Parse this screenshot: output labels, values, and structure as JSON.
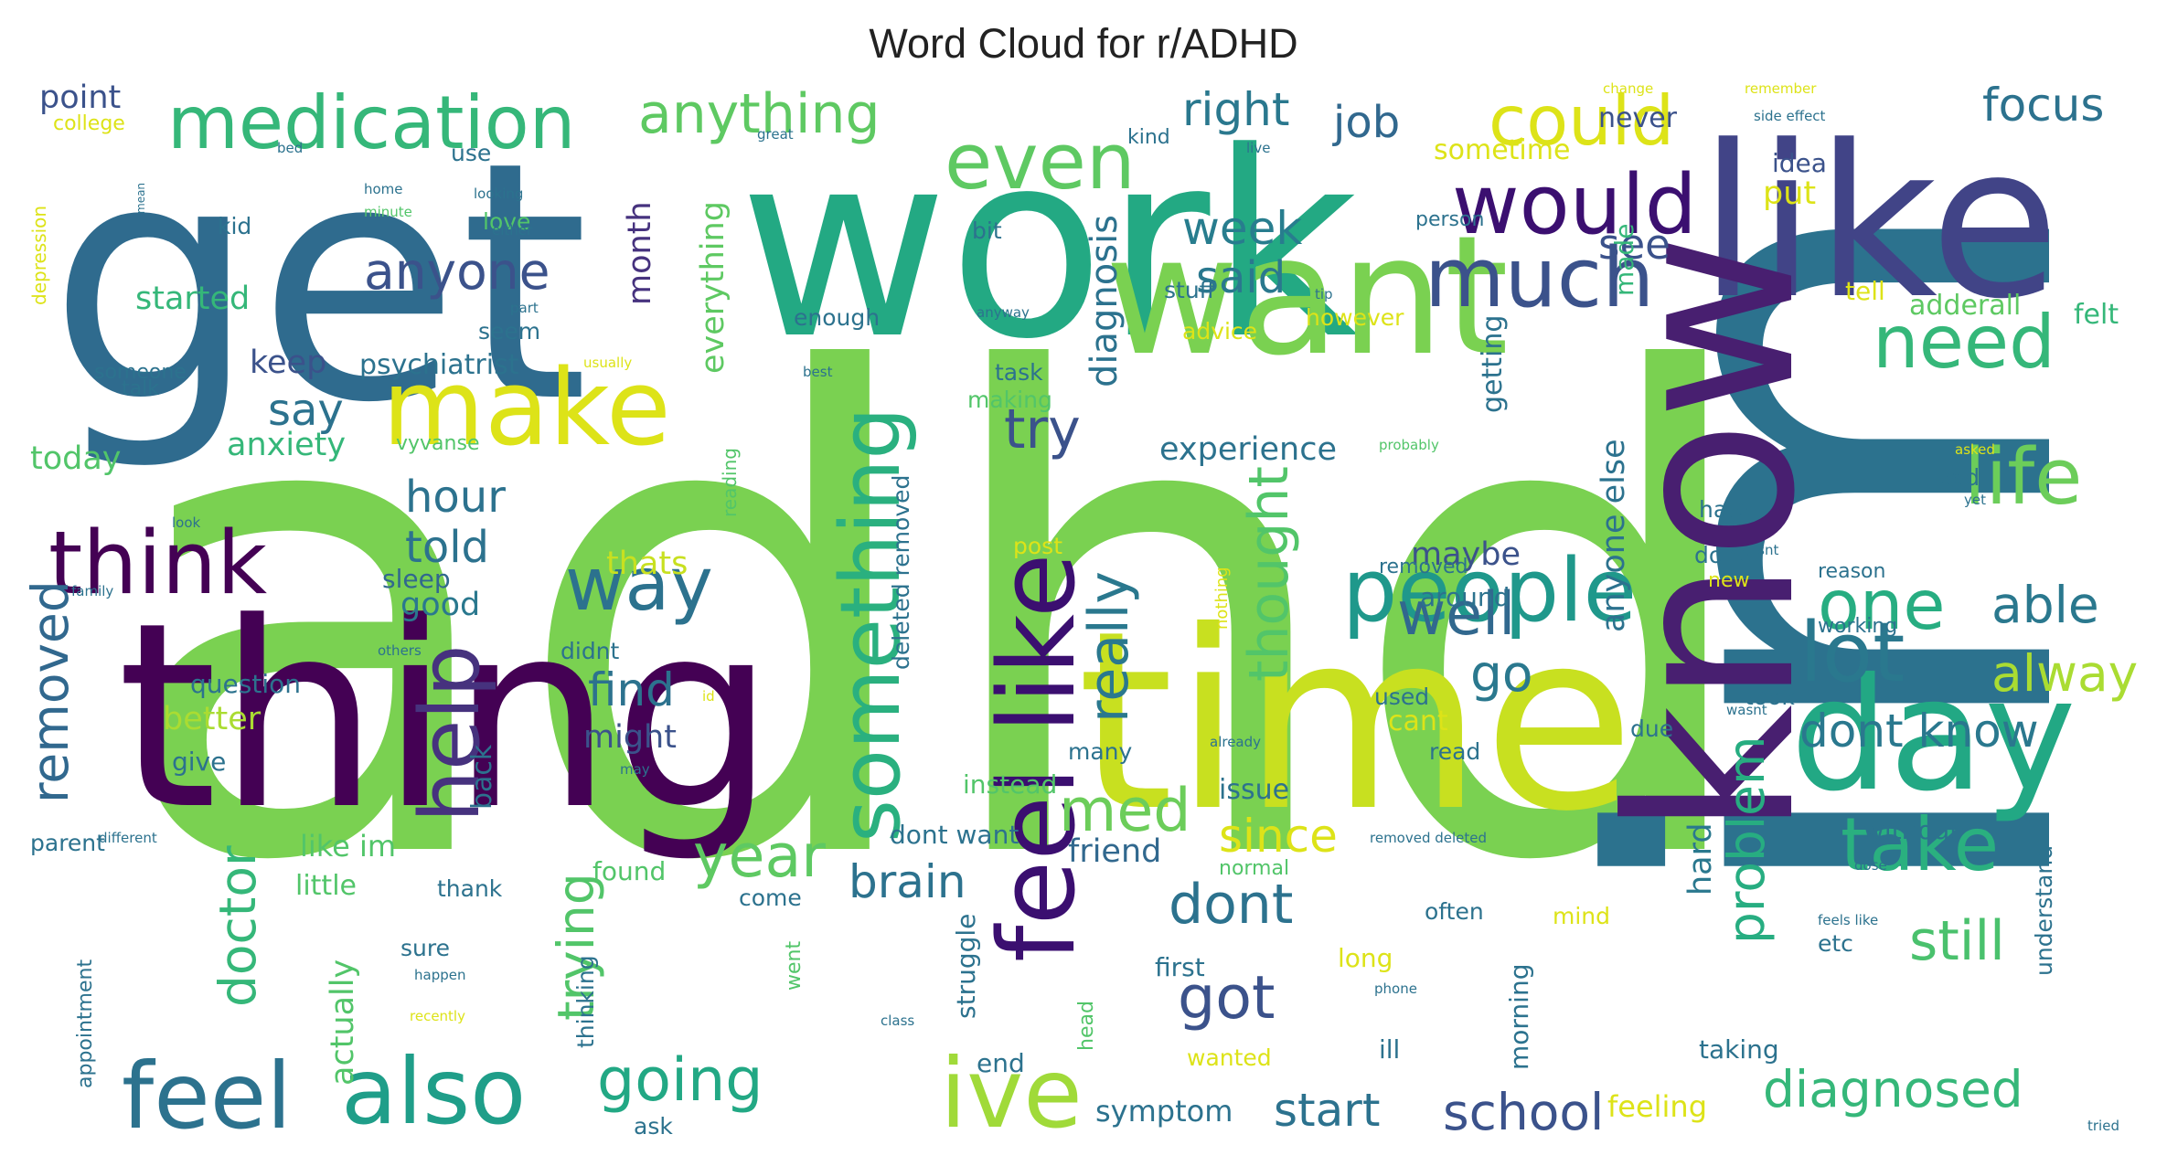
{
  "title": "Word Cloud for r/ADHD",
  "palette": {
    "dark_purple": "#440154",
    "indigo": "#3b528b",
    "blue": "#2c728e",
    "teal": "#21918c",
    "green": "#27ad81",
    "light_green": "#5ec962",
    "yellow_green": "#aadc32",
    "yellow": "#dde318",
    "bright_yellow": "#fde725"
  },
  "words": [
    {
      "text": "adhd",
      "color": "#7ad151",
      "rot": 0
    },
    {
      "text": "im",
      "color": "#2c728e",
      "rot": 90
    },
    {
      "text": "get",
      "color": "#2f6b8e",
      "rot": 0
    },
    {
      "text": "work",
      "color": "#23a983",
      "rot": 0
    },
    {
      "text": "thing",
      "color": "#440154",
      "rot": 0
    },
    {
      "text": "time",
      "color": "#c8e020",
      "rot": 0
    },
    {
      "text": "like",
      "color": "#414487",
      "rot": 0
    },
    {
      "text": "know",
      "color": "#481f70",
      "rot": 90
    },
    {
      "text": "want",
      "color": "#7ad151",
      "rot": 0
    },
    {
      "text": "day",
      "color": "#22a884",
      "rot": 0
    },
    {
      "text": "make",
      "color": "#dde318",
      "rot": 0
    },
    {
      "text": "people",
      "color": "#1f988b",
      "rot": 0
    },
    {
      "text": "feel like",
      "color": "#3b0f70",
      "rot": 90
    },
    {
      "text": "also",
      "color": "#1f9e89",
      "rot": 0
    },
    {
      "text": "feel",
      "color": "#2c728e",
      "rot": 0
    },
    {
      "text": "ive",
      "color": "#a0da39",
      "rot": 0
    },
    {
      "text": "medication",
      "color": "#35b779",
      "rot": 0
    },
    {
      "text": "even",
      "color": "#5ec962",
      "rot": 0
    },
    {
      "text": "would",
      "color": "#3b0f70",
      "rot": 0
    },
    {
      "text": "much",
      "color": "#3b528b",
      "rot": 0
    },
    {
      "text": "need",
      "color": "#35b779",
      "rot": 0
    },
    {
      "text": "life",
      "color": "#6ccd5a",
      "rot": 0
    },
    {
      "text": "think",
      "color": "#440154",
      "rot": 0
    },
    {
      "text": "something",
      "color": "#2ab07f",
      "rot": 90
    },
    {
      "text": "way",
      "color": "#2c728e",
      "rot": 0
    },
    {
      "text": "help",
      "color": "#46327e",
      "rot": 90
    },
    {
      "text": "lot",
      "color": "#2a788e",
      "rot": 0
    },
    {
      "text": "one",
      "color": "#27ad81",
      "rot": 0
    },
    {
      "text": "take",
      "color": "#2ab07f",
      "rot": 0
    },
    {
      "text": "could",
      "color": "#dde318",
      "rot": 0
    },
    {
      "text": "anything",
      "color": "#5ec962",
      "rot": 0
    },
    {
      "text": "focus",
      "color": "#2c728e",
      "rot": 0
    },
    {
      "text": "well",
      "color": "#31688e",
      "rot": 0
    },
    {
      "text": "thought",
      "color": "#52c569",
      "rot": 90
    },
    {
      "text": "med",
      "color": "#6ccd5a",
      "rot": 0
    },
    {
      "text": "dont",
      "color": "#2c728e",
      "rot": 0
    },
    {
      "text": "got",
      "color": "#3b528b",
      "rot": 0
    },
    {
      "text": "year",
      "color": "#5ec962",
      "rot": 0
    },
    {
      "text": "go",
      "color": "#2a788e",
      "rot": 0
    },
    {
      "text": "still",
      "color": "#4ac16d",
      "rot": 0
    },
    {
      "text": "diagnosed",
      "color": "#35b779",
      "rot": 0
    },
    {
      "text": "dont know",
      "color": "#2a788e",
      "rot": 0
    },
    {
      "text": "going",
      "color": "#22a884",
      "rot": 0
    },
    {
      "text": "school",
      "color": "#3b528b",
      "rot": 0
    },
    {
      "text": "start",
      "color": "#2c728e",
      "rot": 0
    },
    {
      "text": "week",
      "color": "#287d8e",
      "rot": 0
    },
    {
      "text": "anyone",
      "color": "#3b528b",
      "rot": 0
    },
    {
      "text": "right",
      "color": "#2a788e",
      "rot": 0
    },
    {
      "text": "job",
      "color": "#31688e",
      "rot": 0
    },
    {
      "text": "able",
      "color": "#2a788e",
      "rot": 0
    },
    {
      "text": "alway",
      "color": "#aadc32",
      "rot": 0
    },
    {
      "text": "really",
      "color": "#2a788e",
      "rot": 90
    },
    {
      "text": "trying",
      "color": "#52c569",
      "rot": 90
    },
    {
      "text": "since",
      "color": "#dde318",
      "rot": 0
    },
    {
      "text": "brain",
      "color": "#2c728e",
      "rot": 0
    },
    {
      "text": "problem",
      "color": "#27ad81",
      "rot": 90
    },
    {
      "text": "doctor",
      "color": "#35b779",
      "rot": 90
    },
    {
      "text": "removed",
      "color": "#31688e",
      "rot": 90
    },
    {
      "text": "try",
      "color": "#3b528b",
      "rot": 0
    },
    {
      "text": "hour",
      "color": "#2c728e",
      "rot": 0
    },
    {
      "text": "told",
      "color": "#2c728e",
      "rot": 0
    },
    {
      "text": "say",
      "color": "#2c728e",
      "rot": 0
    },
    {
      "text": "find",
      "color": "#2c728e",
      "rot": 0
    },
    {
      "text": "said",
      "color": "#2a788e",
      "rot": 0
    },
    {
      "text": "see",
      "color": "#3b528b",
      "rot": 0
    },
    {
      "text": "point",
      "color": "#3b528b",
      "rot": 0
    },
    {
      "text": "anxiety",
      "color": "#35b779",
      "rot": 0
    },
    {
      "text": "started",
      "color": "#35b779",
      "rot": 0
    },
    {
      "text": "today",
      "color": "#52c569",
      "rot": 0
    },
    {
      "text": "keep",
      "color": "#3b528b",
      "rot": 0
    },
    {
      "text": "month",
      "color": "#46327e",
      "rot": 90
    },
    {
      "text": "everything",
      "color": "#5ec962",
      "rot": 90
    },
    {
      "text": "diagnosis",
      "color": "#2c728e",
      "rot": 90
    },
    {
      "text": "experience",
      "color": "#2c728e",
      "rot": 0
    },
    {
      "text": "psychiatrist",
      "color": "#2c728e",
      "rot": 0
    },
    {
      "text": "maybe",
      "color": "#3b528b",
      "rot": 0
    },
    {
      "text": "thats",
      "color": "#c8e020",
      "rot": 0
    },
    {
      "text": "good",
      "color": "#2a788e",
      "rot": 0
    },
    {
      "text": "sleep",
      "color": "#31688e",
      "rot": 0
    },
    {
      "text": "question",
      "color": "#2c728e",
      "rot": 0
    },
    {
      "text": "better",
      "color": "#aadc32",
      "rot": 0
    },
    {
      "text": "might",
      "color": "#3b528b",
      "rot": 0
    },
    {
      "text": "give",
      "color": "#2c728e",
      "rot": 0
    },
    {
      "text": "back",
      "color": "#2c728e",
      "rot": 90
    },
    {
      "text": "issue",
      "color": "#2c728e",
      "rot": 0
    },
    {
      "text": "friend",
      "color": "#31688e",
      "rot": 0
    },
    {
      "text": "sometime",
      "color": "#dde318",
      "rot": 0
    },
    {
      "text": "never",
      "color": "#3b528b",
      "rot": 0
    },
    {
      "text": "idea",
      "color": "#3b528b",
      "rot": 0
    },
    {
      "text": "put",
      "color": "#dde318",
      "rot": 0
    },
    {
      "text": "getting",
      "color": "#2c728e",
      "rot": 90
    },
    {
      "text": "made",
      "color": "#35b779",
      "rot": 90
    },
    {
      "text": "tell",
      "color": "#dde318",
      "rot": 0
    },
    {
      "text": "adderall",
      "color": "#5ec962",
      "rot": 0
    },
    {
      "text": "felt",
      "color": "#35b779",
      "rot": 0
    },
    {
      "text": "anyone else",
      "color": "#2c728e",
      "rot": 90
    },
    {
      "text": "bad",
      "color": "#2c728e",
      "rot": 0
    },
    {
      "text": "hate",
      "color": "#2c728e",
      "rot": 0
    },
    {
      "text": "done",
      "color": "#2c728e",
      "rot": 0
    },
    {
      "text": "around",
      "color": "#2c728e",
      "rot": 0
    },
    {
      "text": "used",
      "color": "#2c728e",
      "rot": 0
    },
    {
      "text": "cant",
      "color": "#dde318",
      "rot": 0
    },
    {
      "text": "read",
      "color": "#2c728e",
      "rot": 0
    },
    {
      "text": "took",
      "color": "#2c728e",
      "rot": 0
    },
    {
      "text": "due",
      "color": "#2c728e",
      "rot": 0
    },
    {
      "text": "hard",
      "color": "#2a788e",
      "rot": 90
    },
    {
      "text": "without",
      "color": "#2c728e",
      "rot": 0
    },
    {
      "text": "understand",
      "color": "#2c728e",
      "rot": 90
    },
    {
      "text": "etc",
      "color": "#2c728e",
      "rot": 0
    },
    {
      "text": "often",
      "color": "#2c728e",
      "rot": 0
    },
    {
      "text": "long",
      "color": "#dde318",
      "rot": 0
    },
    {
      "text": "morning",
      "color": "#2c728e",
      "rot": 90
    },
    {
      "text": "ill",
      "color": "#2c728e",
      "rot": 0
    },
    {
      "text": "feeling",
      "color": "#dde318",
      "rot": 0
    },
    {
      "text": "taking",
      "color": "#2c728e",
      "rot": 0
    },
    {
      "text": "symptom",
      "color": "#2c728e",
      "rot": 0
    },
    {
      "text": "end",
      "color": "#2c728e",
      "rot": 0
    },
    {
      "text": "first",
      "color": "#2c728e",
      "rot": 0
    },
    {
      "text": "many",
      "color": "#2c728e",
      "rot": 0
    },
    {
      "text": "instead",
      "color": "#52c569",
      "rot": 0
    },
    {
      "text": "dont want",
      "color": "#2c728e",
      "rot": 0
    },
    {
      "text": "found",
      "color": "#52c569",
      "rot": 0
    },
    {
      "text": "come",
      "color": "#2c728e",
      "rot": 0
    },
    {
      "text": "thank",
      "color": "#2c728e",
      "rot": 0
    },
    {
      "text": "little",
      "color": "#52c569",
      "rot": 0
    },
    {
      "text": "like im",
      "color": "#52c569",
      "rot": 0
    },
    {
      "text": "parent",
      "color": "#2c728e",
      "rot": 0
    },
    {
      "text": "sure",
      "color": "#2c728e",
      "rot": 0
    },
    {
      "text": "actually",
      "color": "#52c569",
      "rot": 90
    },
    {
      "text": "thinking",
      "color": "#2c728e",
      "rot": 90
    },
    {
      "text": "struggle",
      "color": "#2c728e",
      "rot": 90
    },
    {
      "text": "went",
      "color": "#52c569",
      "rot": 90
    },
    {
      "text": "ask",
      "color": "#2c728e",
      "rot": 0
    },
    {
      "text": "appointment",
      "color": "#2c728e",
      "rot": 90
    },
    {
      "text": "head",
      "color": "#52c569",
      "rot": 90
    },
    {
      "text": "wanted",
      "color": "#dde318",
      "rot": 0
    },
    {
      "text": "mind",
      "color": "#dde318",
      "rot": 0
    },
    {
      "text": "post",
      "color": "#dde318",
      "rot": 0
    },
    {
      "text": "didnt",
      "color": "#2c728e",
      "rot": 0
    },
    {
      "text": "deleted removed",
      "color": "#2c728e",
      "rot": 90
    },
    {
      "text": "reading",
      "color": "#52c569",
      "rot": 90
    },
    {
      "text": "making",
      "color": "#52c569",
      "rot": 0
    },
    {
      "text": "task",
      "color": "#2c728e",
      "rot": 0
    },
    {
      "text": "advice",
      "color": "#dde318",
      "rot": 0
    },
    {
      "text": "however",
      "color": "#dde318",
      "rot": 0
    },
    {
      "text": "stuff",
      "color": "#2c728e",
      "rot": 0
    },
    {
      "text": "enough",
      "color": "#2c728e",
      "rot": 0
    },
    {
      "text": "love",
      "color": "#52c569",
      "rot": 0
    },
    {
      "text": "seem",
      "color": "#2c728e",
      "rot": 0
    },
    {
      "text": "use",
      "color": "#2c728e",
      "rot": 0
    },
    {
      "text": "kid",
      "color": "#2c728e",
      "rot": 0
    },
    {
      "text": "someone",
      "color": "#2c728e",
      "rot": 0
    },
    {
      "text": "talk",
      "color": "#2c728e",
      "rot": 0
    },
    {
      "text": "college",
      "color": "#dde318",
      "rot": 0
    },
    {
      "text": "depression",
      "color": "#dde318",
      "rot": 90
    },
    {
      "text": "kind",
      "color": "#2c728e",
      "rot": 0
    },
    {
      "text": "bit",
      "color": "#2c728e",
      "rot": 0
    },
    {
      "text": "person",
      "color": "#2c728e",
      "rot": 0
    },
    {
      "text": "removed",
      "color": "#2c728e",
      "rot": 0
    },
    {
      "text": "vyvanse",
      "color": "#52c569",
      "rot": 0
    },
    {
      "text": "new",
      "color": "#dde318",
      "rot": 0
    },
    {
      "text": "working",
      "color": "#2c728e",
      "rot": 0
    },
    {
      "text": "reason",
      "color": "#2c728e",
      "rot": 0
    },
    {
      "text": "nothing",
      "color": "#dde318",
      "rot": 90
    },
    {
      "text": "normal",
      "color": "#52c569",
      "rot": 0
    },
    {
      "text": "change",
      "color": "#dde318",
      "rot": 0
    },
    {
      "text": "remember",
      "color": "#dde318",
      "rot": 0
    },
    {
      "text": "side effect",
      "color": "#2c728e",
      "rot": 0
    },
    {
      "text": "great",
      "color": "#2c728e",
      "rot": 0
    },
    {
      "text": "live",
      "color": "#2c728e",
      "rot": 0
    },
    {
      "text": "bed",
      "color": "#2c728e",
      "rot": 0
    },
    {
      "text": "home",
      "color": "#2c728e",
      "rot": 0
    },
    {
      "text": "minute",
      "color": "#52c569",
      "rot": 0
    },
    {
      "text": "looking",
      "color": "#2c728e",
      "rot": 0
    },
    {
      "text": "either",
      "color": "#2c728e",
      "rot": 0
    },
    {
      "text": "mean",
      "color": "#2c728e",
      "rot": 90
    },
    {
      "text": "part",
      "color": "#2c728e",
      "rot": 0
    },
    {
      "text": "tip",
      "color": "#2c728e",
      "rot": 0
    },
    {
      "text": "anyway",
      "color": "#2c728e",
      "rot": 0
    },
    {
      "text": "usually",
      "color": "#dde318",
      "rot": 0
    },
    {
      "text": "best",
      "color": "#2c728e",
      "rot": 0
    },
    {
      "text": "probably",
      "color": "#52c569",
      "rot": 0
    },
    {
      "text": "asked",
      "color": "#dde318",
      "rot": 0
    },
    {
      "text": "yet",
      "color": "#2c728e",
      "rot": 0
    },
    {
      "text": "isnt",
      "color": "#2c728e",
      "rot": 0
    },
    {
      "text": "look",
      "color": "#2c728e",
      "rot": 0
    },
    {
      "text": "family",
      "color": "#2c728e",
      "rot": 0
    },
    {
      "text": "others",
      "color": "#2c728e",
      "rot": 0
    },
    {
      "text": "id",
      "color": "#dde318",
      "rot": 0
    },
    {
      "text": "may",
      "color": "#2c728e",
      "rot": 0
    },
    {
      "text": "already",
      "color": "#2c728e",
      "rot": 0
    },
    {
      "text": "different",
      "color": "#2c728e",
      "rot": 0
    },
    {
      "text": "removed deleted",
      "color": "#2c728e",
      "rot": 0
    },
    {
      "text": "dose",
      "color": "#2c728e",
      "rot": 0
    },
    {
      "text": "feels like",
      "color": "#2c728e",
      "rot": 0
    },
    {
      "text": "wasnt",
      "color": "#2c728e",
      "rot": 0
    },
    {
      "text": "happen",
      "color": "#2c728e",
      "rot": 0
    },
    {
      "text": "recently",
      "color": "#dde318",
      "rot": 0
    },
    {
      "text": "class",
      "color": "#2c728e",
      "rot": 0
    },
    {
      "text": "phone",
      "color": "#2c728e",
      "rot": 0
    },
    {
      "text": "tried",
      "color": "#2c728e",
      "rot": 0
    }
  ]
}
